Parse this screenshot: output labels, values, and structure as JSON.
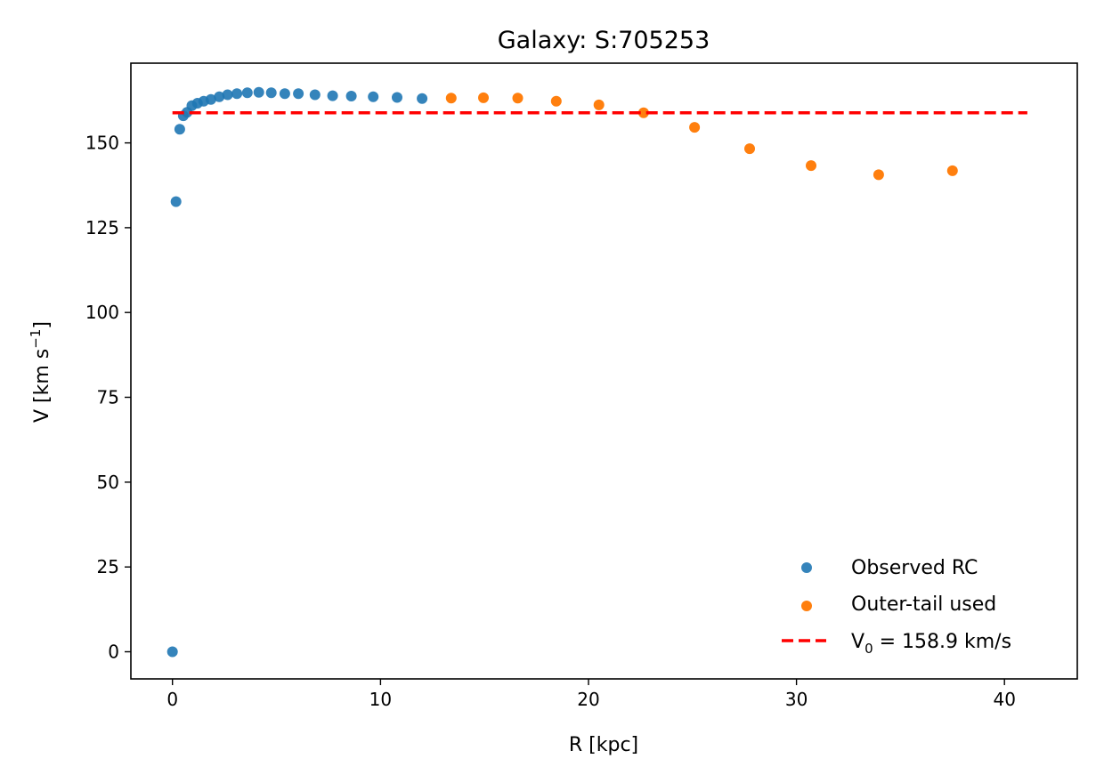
{
  "chart_data": {
    "type": "scatter",
    "title": "Galaxy: S:705253",
    "xlabel": "R  [kpc]",
    "ylabel": {
      "main": "V  [km s",
      "superscript": "−1",
      "close": "]"
    },
    "xlim": [
      -2,
      43.5
    ],
    "ylim": [
      -8,
      173.5
    ],
    "xticks": [
      0,
      10,
      20,
      30,
      40
    ],
    "yticks": [
      0,
      25,
      50,
      75,
      100,
      125,
      150
    ],
    "grid": false,
    "legend_position": "lower-right",
    "series": [
      {
        "name": "Observed RC",
        "kind": "scatter",
        "color": "#1f77b4",
        "points": [
          [
            0.0,
            0.0
          ],
          [
            0.17,
            132.7
          ],
          [
            0.35,
            154.0
          ],
          [
            0.52,
            158.0
          ],
          [
            0.7,
            159.0
          ],
          [
            0.93,
            161.0
          ],
          [
            1.2,
            161.7
          ],
          [
            1.5,
            162.3
          ],
          [
            1.85,
            162.8
          ],
          [
            2.25,
            163.6
          ],
          [
            2.65,
            164.2
          ],
          [
            3.1,
            164.5
          ],
          [
            3.6,
            164.8
          ],
          [
            4.15,
            164.9
          ],
          [
            4.75,
            164.8
          ],
          [
            5.4,
            164.5
          ],
          [
            6.05,
            164.5
          ],
          [
            6.85,
            164.2
          ],
          [
            7.7,
            163.9
          ],
          [
            8.6,
            163.8
          ],
          [
            9.65,
            163.6
          ],
          [
            10.8,
            163.4
          ],
          [
            12.0,
            163.1
          ]
        ]
      },
      {
        "name": "Outer-tail used",
        "kind": "scatter",
        "color": "#ff7f0e",
        "points": [
          [
            13.4,
            163.2
          ],
          [
            14.95,
            163.3
          ],
          [
            16.6,
            163.2
          ],
          [
            18.45,
            162.3
          ],
          [
            20.5,
            161.2
          ],
          [
            22.65,
            158.9
          ],
          [
            25.1,
            154.6
          ],
          [
            27.75,
            148.3
          ],
          [
            30.7,
            143.3
          ],
          [
            33.95,
            140.6
          ],
          [
            37.5,
            141.8
          ]
        ]
      },
      {
        "name": "V₀ = 158.9 km/s",
        "kind": "hline",
        "color": "#ff0000",
        "y": 158.9,
        "x_range": [
          0.0,
          41.1
        ]
      }
    ],
    "legend": [
      {
        "label": "Observed RC",
        "color": "#1f77b4",
        "marker": "dot"
      },
      {
        "label": "Outer-tail used",
        "color": "#ff7f0e",
        "marker": "dot"
      },
      {
        "label_main": "V",
        "label_sub": "0",
        "label_rest": " = 158.9 km/s",
        "color": "#ff0000",
        "marker": "dashed-line"
      }
    ]
  }
}
